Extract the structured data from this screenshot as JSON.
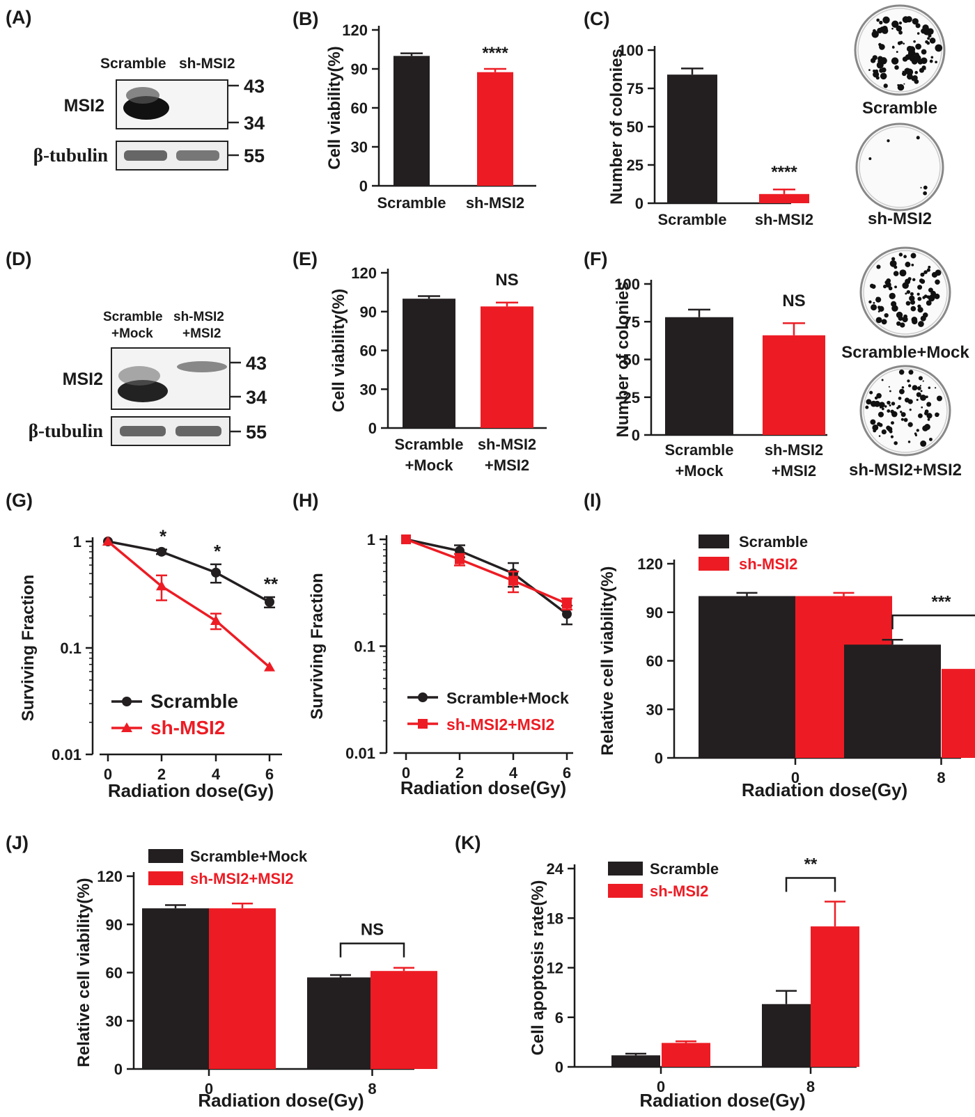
{
  "colors": {
    "black": "#231f20",
    "red": "#ed1c24",
    "axis": "#1a1a1a"
  },
  "western_A": {
    "label": "(A)",
    "lanes": [
      "Scramble",
      "sh-MSI2"
    ],
    "rows": [
      "MSI2",
      "β-tubulin"
    ],
    "markers": [
      "43",
      "34",
      "55"
    ]
  },
  "western_D": {
    "label": "(D)",
    "lanes": [
      "Scramble\n+Mock",
      "sh-MSI2\n+MSI2"
    ],
    "rows": [
      "MSI2",
      "β-tubulin"
    ],
    "markers": [
      "43",
      "34",
      "55"
    ]
  },
  "colony_C": {
    "captions": [
      "Scramble",
      "sh-MSI2"
    ]
  },
  "colony_F": {
    "captions": [
      "Scramble+Mock",
      "sh-MSI2+MSI2"
    ]
  },
  "chart_data": [
    {
      "id": "B",
      "panel": "(B)",
      "type": "bar",
      "ylabel": "Cell viability(%)",
      "ylim": [
        0,
        120
      ],
      "yticks": [
        0,
        30,
        60,
        90,
        120
      ],
      "categories": [
        "Scramble",
        "sh-MSI2"
      ],
      "values": [
        100,
        87.5
      ],
      "errors": [
        2,
        2.5
      ],
      "colors": [
        "#231f20",
        "#ed1c24"
      ],
      "annotations": [
        "",
        "****"
      ]
    },
    {
      "id": "C",
      "panel": "(C)",
      "type": "bar",
      "ylabel": "Number of colonies",
      "ylim": [
        0,
        100
      ],
      "yticks": [
        0,
        25,
        50,
        75,
        100
      ],
      "categories": [
        "Scramble",
        "sh-MSI2"
      ],
      "values": [
        84,
        6
      ],
      "errors": [
        4,
        3
      ],
      "colors": [
        "#231f20",
        "#ed1c24"
      ],
      "annotations": [
        "",
        "****"
      ]
    },
    {
      "id": "E",
      "panel": "(E)",
      "type": "bar",
      "ylabel": "Cell viability(%)",
      "ylim": [
        0,
        120
      ],
      "yticks": [
        0,
        30,
        60,
        90,
        120
      ],
      "categories": [
        "Scramble\n+Mock",
        "sh-MSI2\n+MSI2"
      ],
      "values": [
        100,
        94
      ],
      "errors": [
        2,
        3
      ],
      "colors": [
        "#231f20",
        "#ed1c24"
      ],
      "annotations": [
        "",
        "NS"
      ]
    },
    {
      "id": "F",
      "panel": "(F)",
      "type": "bar",
      "ylabel": "Number of colonies",
      "ylim": [
        0,
        100
      ],
      "yticks": [
        0,
        25,
        50,
        75,
        100
      ],
      "categories": [
        "Scramble\n+Mock",
        "sh-MSI2\n+MSI2"
      ],
      "values": [
        78,
        66
      ],
      "errors": [
        5,
        8
      ],
      "colors": [
        "#231f20",
        "#ed1c24"
      ],
      "annotations": [
        "",
        "NS"
      ]
    },
    {
      "id": "G",
      "panel": "(G)",
      "type": "line",
      "xlabel": "Radiation dose(Gy)",
      "ylabel": "Surviving Fraction",
      "yscale": "log",
      "ylim": [
        0.01,
        1
      ],
      "yticks": [
        "1",
        "0.1",
        "0.01"
      ],
      "x": [
        0,
        2,
        4,
        6
      ],
      "series": [
        {
          "name": "Scramble",
          "color": "#231f20",
          "marker": "circle",
          "values": [
            1,
            0.8,
            0.51,
            0.27
          ],
          "errors": [
            0,
            0.04,
            0.1,
            0.03
          ]
        },
        {
          "name": "sh-MSI2",
          "color": "#ed1c24",
          "marker": "triangle",
          "values": [
            1,
            0.38,
            0.18,
            0.066
          ],
          "errors": [
            0,
            0.1,
            0.03,
            0
          ]
        }
      ],
      "annotations": [
        {
          "x": 2,
          "text": "*"
        },
        {
          "x": 4,
          "text": "*"
        },
        {
          "x": 6,
          "text": "**"
        }
      ]
    },
    {
      "id": "H",
      "panel": "(H)",
      "type": "line",
      "xlabel": "Radiation dose(Gy)",
      "ylabel": "Surviving Fraction",
      "yscale": "log",
      "ylim": [
        0.01,
        1
      ],
      "yticks": [
        "1",
        "0.1",
        "0.01"
      ],
      "x": [
        0,
        2,
        4,
        6
      ],
      "series": [
        {
          "name": "Scramble+Mock",
          "color": "#231f20",
          "marker": "circle",
          "values": [
            1,
            0.78,
            0.48,
            0.2
          ],
          "errors": [
            0,
            0.1,
            0.12,
            0.04
          ]
        },
        {
          "name": "sh-MSI2+MSI2",
          "color": "#ed1c24",
          "marker": "square",
          "values": [
            1,
            0.65,
            0.41,
            0.25
          ],
          "errors": [
            0,
            0.08,
            0.09,
            0.03
          ]
        }
      ]
    },
    {
      "id": "I",
      "panel": "(I)",
      "type": "bar",
      "xlabel": "Radiation dose(Gy)",
      "ylabel": "Relative cell viability(%)",
      "ylim": [
        0,
        120
      ],
      "yticks": [
        0,
        30,
        60,
        90,
        120
      ],
      "categories": [
        "0",
        "8"
      ],
      "series": [
        {
          "name": "Scramble",
          "color": "#231f20",
          "values": [
            100,
            70
          ],
          "errors": [
            2,
            3
          ]
        },
        {
          "name": "sh-MSI2",
          "color": "#ed1c24",
          "values": [
            100,
            55
          ],
          "errors": [
            2,
            1
          ]
        }
      ],
      "bracket": {
        "category": "8",
        "text": "***"
      }
    },
    {
      "id": "J",
      "panel": "(J)",
      "type": "bar",
      "xlabel": "Radiation dose(Gy)",
      "ylabel": "Relative cell viability(%)",
      "ylim": [
        0,
        120
      ],
      "yticks": [
        0,
        30,
        60,
        90,
        120
      ],
      "categories": [
        "0",
        "8"
      ],
      "series": [
        {
          "name": "Scramble+Mock",
          "color": "#231f20",
          "values": [
            100,
            57
          ],
          "errors": [
            2,
            1.5
          ]
        },
        {
          "name": "sh-MSI2+MSI2",
          "color": "#ed1c24",
          "values": [
            100,
            61
          ],
          "errors": [
            3,
            2
          ]
        }
      ],
      "bracket": {
        "category": "8",
        "text": "NS"
      }
    },
    {
      "id": "K",
      "panel": "(K)",
      "type": "bar",
      "xlabel": "Radiation dose(Gy)",
      "ylabel": "Cell apoptosis rate(%)",
      "ylim": [
        0,
        24
      ],
      "yticks": [
        0,
        6,
        12,
        18,
        24
      ],
      "categories": [
        "0",
        "8"
      ],
      "series": [
        {
          "name": "Scramble",
          "color": "#231f20",
          "values": [
            1.4,
            7.6
          ],
          "errors": [
            0.2,
            1.6
          ]
        },
        {
          "name": "sh-MSI2",
          "color": "#ed1c24",
          "values": [
            2.9,
            17
          ],
          "errors": [
            0.2,
            3
          ]
        }
      ],
      "bracket": {
        "category": "8",
        "text": "**"
      }
    }
  ]
}
